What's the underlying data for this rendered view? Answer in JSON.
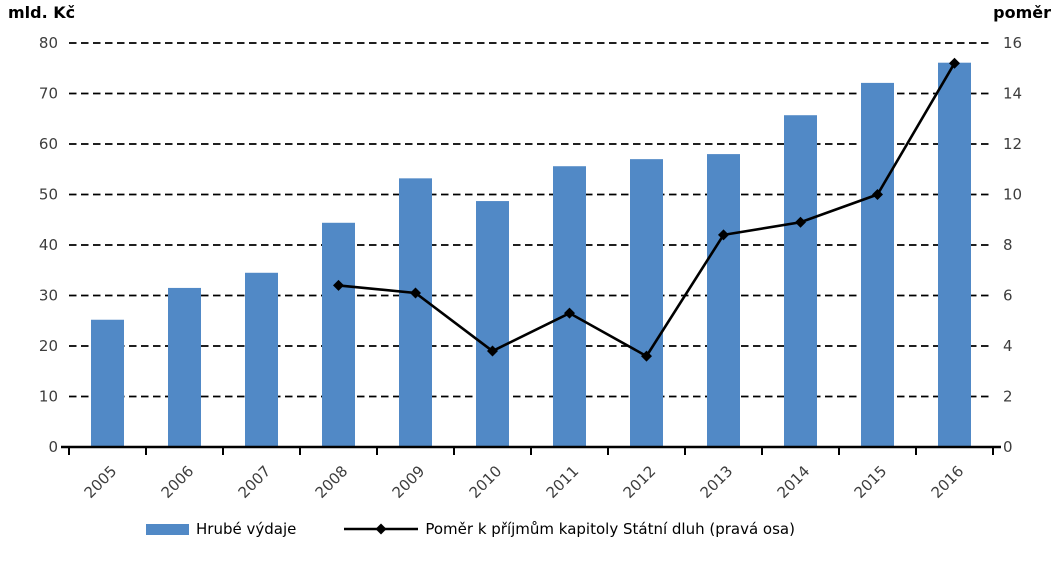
{
  "chart_data": {
    "type": "combo-bar-line",
    "categories": [
      "2005",
      "2006",
      "2007",
      "2008",
      "2009",
      "2010",
      "2011",
      "2012",
      "2013",
      "2014",
      "2015",
      "2016"
    ],
    "series": [
      {
        "name": "Hrubé výdaje",
        "type": "bar",
        "axis": "left",
        "color": "#5189C6",
        "values": [
          25.2,
          31.5,
          34.5,
          44.4,
          53.2,
          48.7,
          55.6,
          57.0,
          58.0,
          65.7,
          72.1,
          76.1
        ]
      },
      {
        "name": "Poměr k příjmům kapitoly Státní dluh (pravá osa)",
        "type": "line",
        "axis": "right",
        "color": "#000000",
        "marker": "diamond",
        "values": [
          null,
          null,
          null,
          6.4,
          6.1,
          3.8,
          5.3,
          3.6,
          8.4,
          8.9,
          10.0,
          15.2
        ]
      }
    ],
    "left_axis": {
      "title": "mld. Kč",
      "min": 0,
      "max": 80,
      "ticks": [
        0,
        10,
        20,
        30,
        40,
        50,
        60,
        70,
        80
      ]
    },
    "right_axis": {
      "title": "poměr",
      "min": 0,
      "max": 16,
      "ticks": [
        0,
        2,
        4,
        6,
        8,
        10,
        12,
        14,
        16
      ]
    },
    "grid": {
      "horizontal": true,
      "style": "dashed",
      "color": "#000000"
    },
    "tick_label_color": "#3d3d3d",
    "legend_position": "bottom"
  }
}
